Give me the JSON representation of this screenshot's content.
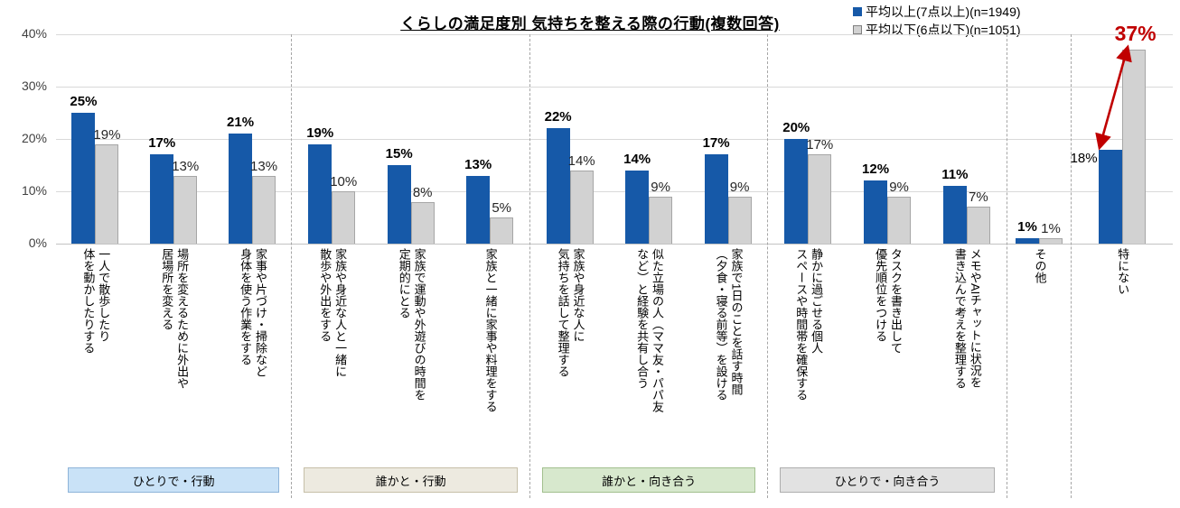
{
  "title": "くらしの満足度別 気持ちを整える際の行動(複数回答)",
  "legend": [
    {
      "label": "平均以上(7点以上)(n=1949)",
      "color": "#1659a8",
      "border": "#1659a8"
    },
    {
      "label": "平均以下(6点以下)(n=1051)",
      "color": "#d2d2d2",
      "border": "#808080"
    }
  ],
  "y_axis": {
    "ticks": [
      "40%",
      "30%",
      "20%",
      "10%",
      "0%"
    ],
    "max": 40
  },
  "chart_data": {
    "type": "bar",
    "title": "くらしの満足度別 気持ちを整える際の行動(複数回答)",
    "ylabel": "",
    "xlabel": "",
    "ylim": [
      0,
      40
    ],
    "grid": true,
    "legend_position": "top-right",
    "series_names": [
      "平均以上(7点以上)(n=1949)",
      "平均以下(6点以下)(n=1051)"
    ],
    "colors": {
      "above": "#1659a8",
      "below": "#d2d2d2",
      "below_border": "#a6a6a6",
      "annotation": "#c00000"
    },
    "groups": [
      {
        "name": "ひとりで・行動",
        "box_fill": "#c9e2f7",
        "box_border": "#8eb4d9",
        "items": [
          {
            "label": "一人で散歩したり体を動かしたりする",
            "lines": [
              "一人で散歩したり",
              "体を動かしたりする"
            ],
            "above": 25,
            "below": 19
          },
          {
            "label": "場所を変えるために外出や居場所を変える",
            "lines": [
              "場所を変えるために外出や",
              "居場所を変える"
            ],
            "above": 17,
            "below": 13
          },
          {
            "label": "家事や片づけ・掃除など身体を使う作業をする",
            "lines": [
              "家事や片づけ・掃除など",
              "身体を使う作業をする"
            ],
            "above": 21,
            "below": 13
          }
        ]
      },
      {
        "name": "誰かと・行動",
        "box_fill": "#edeae0",
        "box_border": "#c6bfa8",
        "items": [
          {
            "label": "家族や身近な人と一緒に散歩や外出をする",
            "lines": [
              "家族や身近な人と一緒に",
              "散歩や外出をする"
            ],
            "above": 19,
            "below": 10
          },
          {
            "label": "家族で運動や外遊びの時間を定期的にとる",
            "lines": [
              "家族で運動や外遊びの時間を",
              "定期的にとる"
            ],
            "above": 15,
            "below": 8
          },
          {
            "label": "家族と一緒に家事や料理をする",
            "lines": [
              "家族と一緒に家事や料理をする"
            ],
            "above": 13,
            "below": 5
          }
        ]
      },
      {
        "name": "誰かと・向き合う",
        "box_fill": "#d7e8cd",
        "box_border": "#a2c08e",
        "items": [
          {
            "label": "家族や身近な人に気持ちを話して整理する",
            "lines": [
              "家族や身近な人に",
              "気持ちを話して整理する"
            ],
            "above": 22,
            "below": 14
          },
          {
            "label": "似た立場の人（ママ友・パパ友など）と経験を共有し合う",
            "lines": [
              "似た立場の人（ママ友・パパ友",
              "など）と経験を共有し合う"
            ],
            "above": 14,
            "below": 9
          },
          {
            "label": "家族で1日のことを話す時間（夕食・寝る前等）を設ける",
            "lines": [
              "家族で1日のことを話す時間",
              "（夕食・寝る前等）を設ける"
            ],
            "above": 17,
            "below": 9
          }
        ]
      },
      {
        "name": "ひとりで・向き合う",
        "box_fill": "#e2e2e2",
        "box_border": "#adadad",
        "items": [
          {
            "label": "静かに過ごせる個人スペースや時間帯を確保する",
            "lines": [
              "静かに過ごせる個人",
              "スペースや時間帯を確保する"
            ],
            "above": 20,
            "below": 17
          },
          {
            "label": "タスクを書き出して優先順位をつける",
            "lines": [
              "タスクを書き出して",
              "優先順位をつける"
            ],
            "above": 12,
            "below": 9
          },
          {
            "label": "メモやAIチャットに状況を書き込んで考えを整理する",
            "lines": [
              "メモやAIチャットに状況を",
              "書き込んで考えを整理する"
            ],
            "above": 11,
            "below": 7
          }
        ]
      },
      {
        "name": "",
        "box_fill": "",
        "box_border": "",
        "items": [
          {
            "label": "その他",
            "lines": [
              "その他"
            ],
            "above": 1,
            "below": 1
          },
          {
            "label": "特にない",
            "lines": [
              "特にない"
            ],
            "above": 18,
            "below": 37,
            "annotation": {
              "text": "37%",
              "color": "#c00000",
              "arrow": true,
              "from_value": 18,
              "to_value": 37
            }
          }
        ]
      }
    ]
  }
}
